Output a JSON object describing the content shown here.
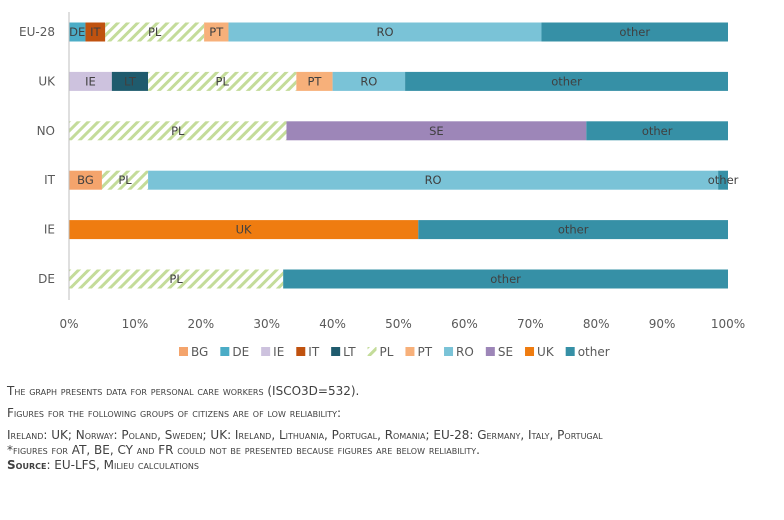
{
  "chart_data": {
    "type": "bar",
    "orientation": "horizontal",
    "stacked": "100%",
    "categories": [
      "EU-28",
      "UK",
      "NO",
      "IT",
      "IE",
      "DE"
    ],
    "xlim": [
      0,
      100
    ],
    "x_ticks": [
      "0%",
      "10%",
      "20%",
      "30%",
      "40%",
      "50%",
      "60%",
      "70%",
      "80%",
      "90%",
      "100%"
    ],
    "grid": false,
    "legend_position": "bottom",
    "series": [
      {
        "name": "BG",
        "color": "#F4A46C",
        "values": [
          0,
          0,
          0,
          5,
          0,
          0
        ]
      },
      {
        "name": "DE",
        "color": "#4BACC6",
        "values": [
          2.5,
          0,
          0,
          0,
          0,
          0
        ]
      },
      {
        "name": "IE",
        "color": "#CDC2DE",
        "values": [
          0,
          6.5,
          0,
          0,
          0,
          0
        ]
      },
      {
        "name": "IT",
        "color": "#C0520F",
        "values": [
          3,
          0,
          0,
          0,
          0,
          0
        ]
      },
      {
        "name": "LT",
        "color": "#1F5B6D",
        "values": [
          0,
          5.5,
          0,
          0,
          0,
          0
        ]
      },
      {
        "name": "PL",
        "color": "#C4DC9A",
        "pattern": "hatch",
        "values": [
          15,
          22.5,
          33,
          7,
          0,
          32.5
        ]
      },
      {
        "name": "PT",
        "color": "#F7B07A",
        "values": [
          3.7,
          5.5,
          0,
          0,
          0,
          0
        ]
      },
      {
        "name": "RO",
        "color": "#7AC3D7",
        "values": [
          47.5,
          11,
          0,
          86.5,
          0,
          0
        ]
      },
      {
        "name": "SE",
        "color": "#9D86B8",
        "values": [
          0,
          0,
          45.5,
          0,
          0,
          0
        ]
      },
      {
        "name": "UK",
        "color": "#EF7C10",
        "values": [
          0,
          0,
          0,
          0,
          53,
          0
        ]
      },
      {
        "name": "other",
        "color": "#3690A6",
        "values": [
          28.3,
          49,
          21.5,
          1.5,
          47,
          67.5
        ]
      }
    ]
  },
  "notes": {
    "line1": "The graph presents data for personal care workers (ISCO3D=532).",
    "line2": "Figures for the following groups of citizens are of low reliability:",
    "line3": "Ireland: UK; Norway: Poland, Sweden; UK: Ireland, Lithuania, Portugal, Romania; EU-28: Germany, Italy, Portugal",
    "line4": "*figures for AT, BE, CY and FR could not be presented because figures are below reliability.",
    "source_label": "Source",
    "source_text": ": EU-LFS, Milieu calculations"
  }
}
